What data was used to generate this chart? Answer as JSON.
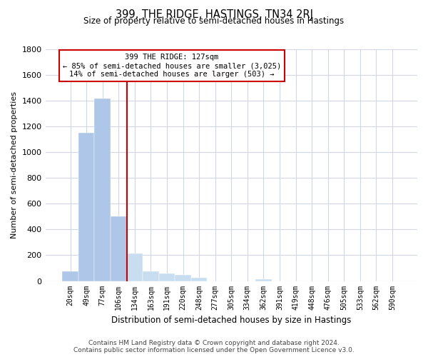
{
  "title": "399, THE RIDGE, HASTINGS, TN34 2RJ",
  "subtitle": "Size of property relative to semi-detached houses in Hastings",
  "xlabel": "Distribution of semi-detached houses by size in Hastings",
  "ylabel": "Number of semi-detached properties",
  "categories": [
    "20sqm",
    "49sqm",
    "77sqm",
    "106sqm",
    "134sqm",
    "163sqm",
    "191sqm",
    "220sqm",
    "248sqm",
    "277sqm",
    "305sqm",
    "334sqm",
    "362sqm",
    "391sqm",
    "419sqm",
    "448sqm",
    "476sqm",
    "505sqm",
    "533sqm",
    "562sqm",
    "590sqm"
  ],
  "values": [
    75,
    1150,
    1420,
    500,
    215,
    75,
    60,
    50,
    25,
    0,
    0,
    0,
    15,
    0,
    0,
    0,
    0,
    0,
    0,
    0,
    0
  ],
  "bar_color_left": "#aec6e8",
  "bar_color_right": "#c8ddf0",
  "vline_color": "#cc0000",
  "annotation_title": "399 THE RIDGE: 127sqm",
  "annotation_line1": "← 85% of semi-detached houses are smaller (3,025)",
  "annotation_line2": "14% of semi-detached houses are larger (503) →",
  "annotation_box_color": "#ffffff",
  "annotation_box_edge": "#cc0000",
  "ylim": [
    0,
    1800
  ],
  "yticks": [
    0,
    200,
    400,
    600,
    800,
    1000,
    1200,
    1400,
    1600,
    1800
  ],
  "property_line_bin": 4,
  "background_color": "#ffffff",
  "grid_color": "#d0d8e8",
  "footer_line1": "Contains HM Land Registry data © Crown copyright and database right 2024.",
  "footer_line2": "Contains public sector information licensed under the Open Government Licence v3.0."
}
